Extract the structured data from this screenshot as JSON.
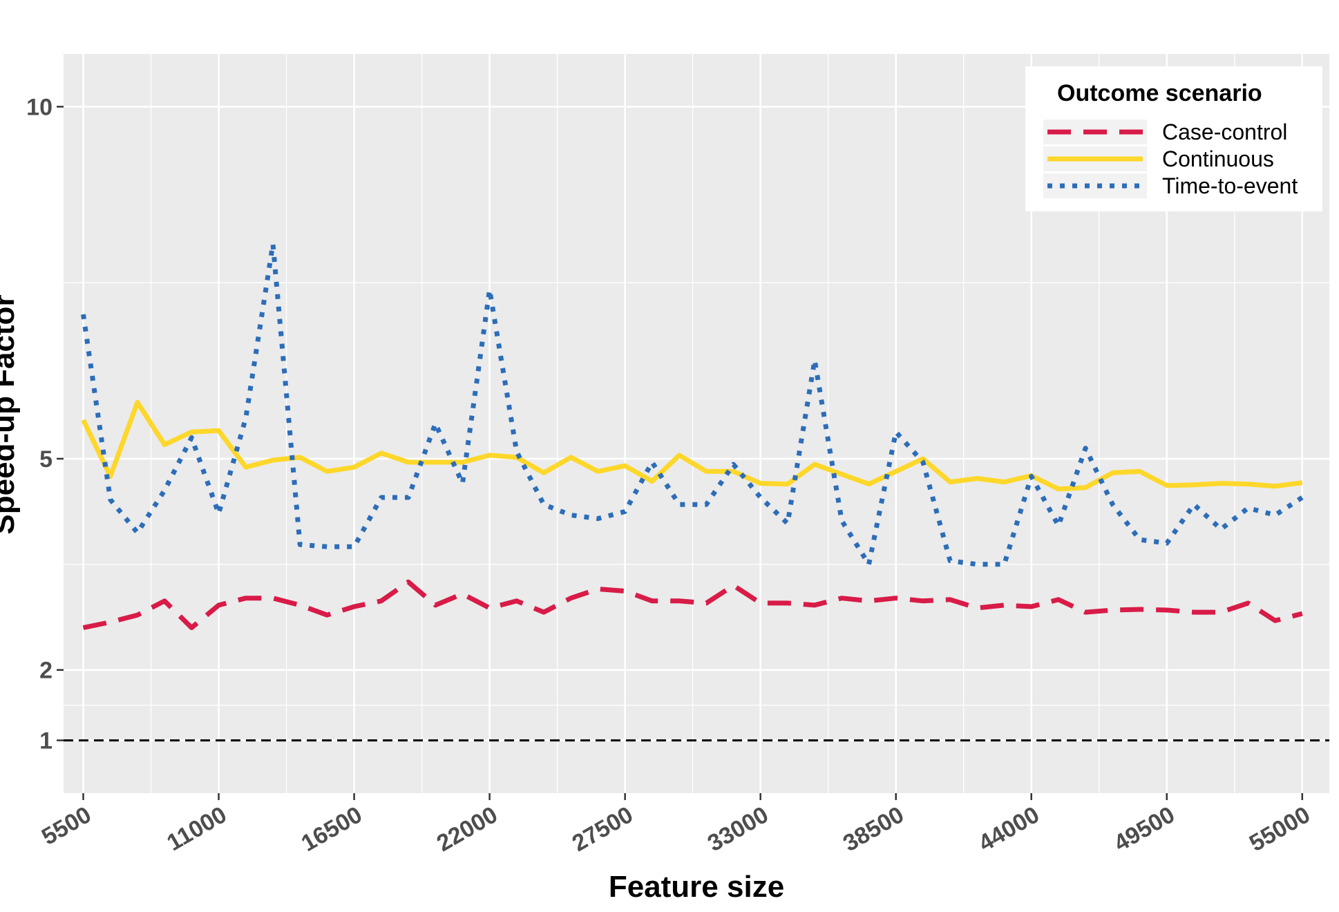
{
  "chart_data": {
    "type": "line",
    "xlabel": "Feature size",
    "ylabel": "Speed-up Factor",
    "x_ticks": [
      "5500",
      "11000",
      "16500",
      "22000",
      "27500",
      "33000",
      "38500",
      "44000",
      "49500",
      "55000"
    ],
    "y_ticks": [
      "1",
      "2",
      "5",
      "10"
    ],
    "xlim": [
      4700,
      56100
    ],
    "ylim": [
      0.25,
      10.75
    ],
    "grid": true,
    "legend": {
      "title": "Outcome scenario",
      "position": "top-right"
    },
    "reference_line": {
      "y": 1,
      "style": "dashed",
      "color": "#000000"
    },
    "x": [
      5500,
      6600,
      7700,
      8800,
      9900,
      11000,
      12100,
      13200,
      14300,
      15400,
      16500,
      17600,
      18700,
      19800,
      20900,
      22000,
      23100,
      24200,
      25300,
      26400,
      27500,
      28600,
      29700,
      30800,
      31900,
      33000,
      34100,
      35200,
      36300,
      37400,
      38500,
      39600,
      40700,
      41800,
      42900,
      44000,
      45100,
      46200,
      47300,
      48400,
      49500,
      50600,
      51700,
      52800,
      53900,
      55000
    ],
    "series": [
      {
        "name": "Case-control",
        "color": "#d81b47",
        "style": "dashed",
        "values": [
          2.6,
          2.68,
          2.78,
          2.98,
          2.6,
          2.92,
          3.02,
          3.02,
          2.92,
          2.78,
          2.9,
          2.98,
          3.25,
          2.92,
          3.08,
          2.88,
          2.98,
          2.82,
          3.02,
          3.15,
          3.12,
          2.98,
          2.98,
          2.95,
          3.2,
          2.95,
          2.95,
          2.92,
          3.02,
          2.98,
          3.02,
          2.98,
          3.0,
          2.88,
          2.92,
          2.9,
          3.0,
          2.82,
          2.85,
          2.86,
          2.85,
          2.82,
          2.82,
          2.95,
          2.7,
          2.8
        ]
      },
      {
        "name": "Continuous",
        "color": "#fdd72a",
        "style": "solid",
        "values": [
          5.55,
          4.75,
          5.8,
          5.2,
          5.38,
          5.4,
          4.88,
          4.98,
          5.02,
          4.82,
          4.88,
          5.08,
          4.95,
          4.95,
          4.95,
          5.05,
          5.02,
          4.8,
          5.02,
          4.82,
          4.9,
          4.68,
          5.05,
          4.82,
          4.82,
          4.65,
          4.64,
          4.92,
          4.78,
          4.64,
          4.82,
          5.0,
          4.67,
          4.72,
          4.67,
          4.76,
          4.57,
          4.59,
          4.8,
          4.82,
          4.62,
          4.63,
          4.65,
          4.64,
          4.61,
          4.66
        ]
      },
      {
        "name": "Time-to-event",
        "color": "#2c6db9",
        "style": "dotted",
        "values": [
          7.05,
          4.42,
          3.95,
          4.55,
          5.3,
          4.22,
          5.58,
          8.05,
          3.78,
          3.75,
          3.75,
          4.45,
          4.45,
          5.5,
          4.65,
          7.4,
          5.1,
          4.35,
          4.2,
          4.15,
          4.25,
          4.95,
          4.35,
          4.35,
          4.92,
          4.45,
          4.08,
          6.4,
          4.12,
          3.5,
          5.38,
          4.95,
          3.55,
          3.5,
          3.5,
          4.75,
          4.05,
          5.15,
          4.35,
          3.85,
          3.8,
          4.35,
          4.0,
          4.3,
          4.2,
          4.45
        ]
      }
    ]
  }
}
